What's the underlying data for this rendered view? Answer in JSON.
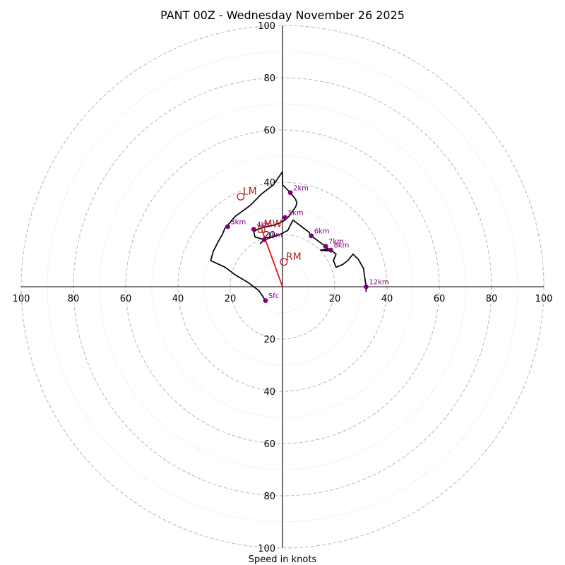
{
  "chart_data": {
    "type": "hodograph",
    "title": "PANT 00Z - Wednesday November 26 2025",
    "xlabel": "Speed in knots",
    "units": "knots",
    "range": [
      -100,
      100
    ],
    "ring_radii_major": [
      20,
      40,
      60,
      80,
      100
    ],
    "ring_radii_minor": [
      10,
      30,
      50,
      70,
      90
    ],
    "tick_labels_x_left": [
      "100",
      "80",
      "60",
      "40",
      "20"
    ],
    "tick_values_x_left": [
      -100,
      -80,
      -60,
      -40,
      -20
    ],
    "tick_labels_x_right": [
      "20",
      "40",
      "60",
      "80",
      "100"
    ],
    "tick_values_x_right": [
      20,
      40,
      60,
      80,
      100
    ],
    "tick_labels_y_up": [
      "20",
      "40",
      "60",
      "80",
      "100"
    ],
    "tick_values_y_up": [
      20,
      40,
      60,
      80,
      100
    ],
    "tick_labels_y_down": [
      "20",
      "40",
      "60",
      "80",
      "100"
    ],
    "tick_values_y_down": [
      -20,
      -40,
      -60,
      -80,
      -100
    ],
    "hodograph_trace": [
      [
        -6.5,
        -5.3
      ],
      [
        -9,
        -1.5
      ],
      [
        -13,
        1.5
      ],
      [
        -18,
        4.5
      ],
      [
        -22,
        7.5
      ],
      [
        -27.5,
        10
      ],
      [
        -26.5,
        13.5
      ],
      [
        -24.5,
        17.5
      ],
      [
        -23,
        20
      ],
      [
        -22,
        22.5
      ],
      [
        -21,
        23.5
      ],
      [
        -18,
        27
      ],
      [
        -12.5,
        31
      ],
      [
        -8,
        35.5
      ],
      [
        -3.5,
        39
      ],
      [
        0,
        44
      ],
      [
        0,
        39
      ],
      [
        3,
        36
      ],
      [
        5,
        33.5
      ],
      [
        5.5,
        32
      ],
      [
        5,
        30.5
      ],
      [
        2.5,
        27
      ],
      [
        1,
        25.5
      ],
      [
        -1,
        24.5
      ],
      [
        -3.5,
        23.5
      ],
      [
        -6,
        23
      ],
      [
        -8,
        22.5
      ],
      [
        -9.5,
        22
      ],
      [
        -11,
        21
      ],
      [
        -10.5,
        19
      ],
      [
        -8.5,
        18.5
      ],
      [
        -7,
        18
      ],
      [
        -8.5,
        16.5
      ],
      [
        -7.5,
        17.5
      ],
      [
        -5.5,
        18.5
      ],
      [
        -1,
        20
      ],
      [
        2,
        21.5
      ],
      [
        4,
        25.5
      ],
      [
        8,
        22.5
      ],
      [
        10,
        21
      ],
      [
        11,
        19.5
      ],
      [
        13,
        18
      ],
      [
        15,
        16.5
      ],
      [
        17,
        15
      ],
      [
        18,
        14
      ],
      [
        18.5,
        13.8
      ],
      [
        16.5,
        13.8
      ],
      [
        14.5,
        14
      ],
      [
        18,
        14.5
      ],
      [
        20.5,
        12.5
      ],
      [
        19.5,
        10
      ],
      [
        20.5,
        7.5
      ],
      [
        23,
        8.5
      ],
      [
        25,
        10
      ],
      [
        27,
        12.5
      ],
      [
        29,
        10.5
      ],
      [
        31,
        7
      ],
      [
        31.5,
        3.5
      ],
      [
        32,
        0
      ],
      [
        32,
        -2
      ]
    ],
    "height_markers": [
      {
        "label": "Sfc",
        "u": -6.5,
        "v": -5.3
      },
      {
        "label": "1km",
        "u": -7,
        "v": 18
      },
      {
        "label": "2km",
        "u": 3,
        "v": 36
      },
      {
        "label": "3km",
        "u": -21,
        "v": 23
      },
      {
        "label": "4km",
        "u": -11,
        "v": 22
      },
      {
        "label": "5km",
        "u": 1,
        "v": 26.5
      },
      {
        "label": "6km",
        "u": 11,
        "v": 19.5
      },
      {
        "label": "7km",
        "u": 16.5,
        "v": 15.5
      },
      {
        "label": "8km",
        "u": 18.5,
        "v": 14
      },
      {
        "label": "12km",
        "u": 32,
        "v": 0
      }
    ],
    "storm_motion": [
      {
        "label": "LM",
        "u": -16,
        "v": 34.5,
        "shape": "circle"
      },
      {
        "label": "MW",
        "u": -8,
        "v": 22,
        "shape": "square"
      },
      {
        "label": "RM",
        "u": 0.5,
        "v": 9.5,
        "shape": "circle"
      }
    ],
    "mean_wind_vector": {
      "u": -8,
      "v": 22
    }
  }
}
